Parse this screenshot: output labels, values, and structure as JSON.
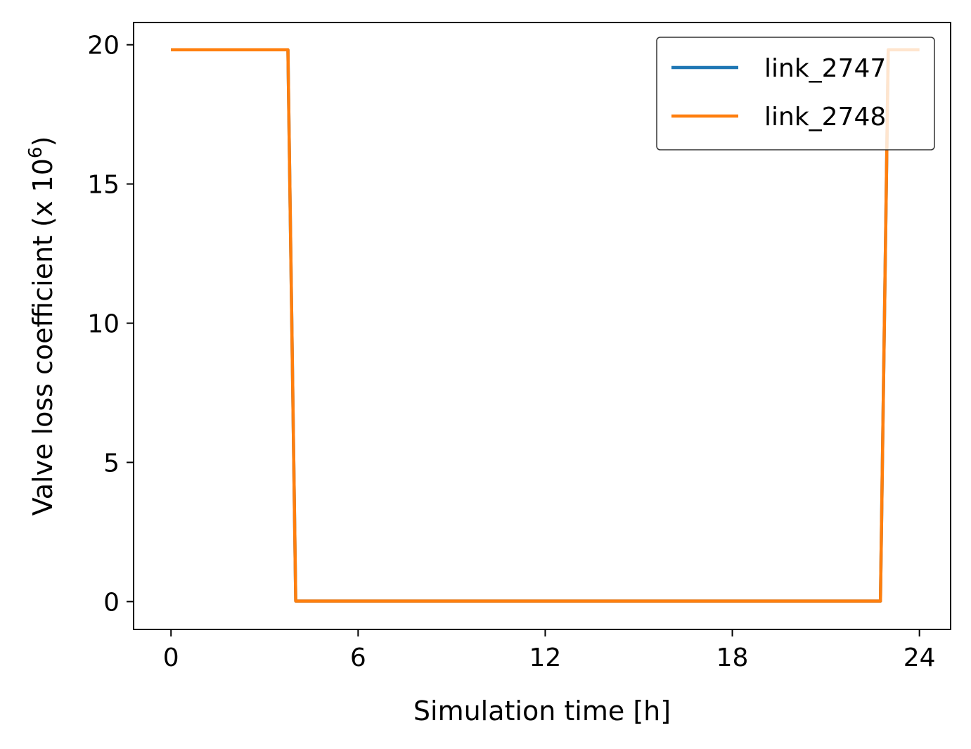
{
  "chart_data": {
    "type": "line",
    "xlabel": "Simulation time [h]",
    "ylabel": {
      "prefix": "Valve loss coefficient (x 10",
      "exponent": "6",
      "suffix": ")"
    },
    "xlim": [
      -1.2,
      25.0
    ],
    "ylim": [
      -1.0,
      20.8
    ],
    "xticks": [
      0,
      6,
      12,
      18,
      24
    ],
    "xtick_labels": [
      "0",
      "6",
      "12",
      "18",
      "24"
    ],
    "yticks": [
      0,
      5,
      10,
      15,
      20
    ],
    "ytick_labels": [
      "0",
      "5",
      "10",
      "15",
      "20"
    ],
    "grid": false,
    "legend_position": "top-right",
    "series": [
      {
        "name": "link_2747",
        "color": "#1f77b4",
        "x": [
          0,
          3.75,
          4.0,
          22.75,
          23.0,
          24.0
        ],
        "y": [
          19.82,
          19.82,
          0.02,
          0.02,
          19.82,
          19.82
        ]
      },
      {
        "name": "link_2748",
        "color": "#ff7f0e",
        "x": [
          0,
          3.75,
          4.0,
          22.75,
          23.0,
          24.0
        ],
        "y": [
          19.82,
          19.82,
          0.02,
          0.02,
          19.82,
          19.82
        ]
      }
    ]
  }
}
